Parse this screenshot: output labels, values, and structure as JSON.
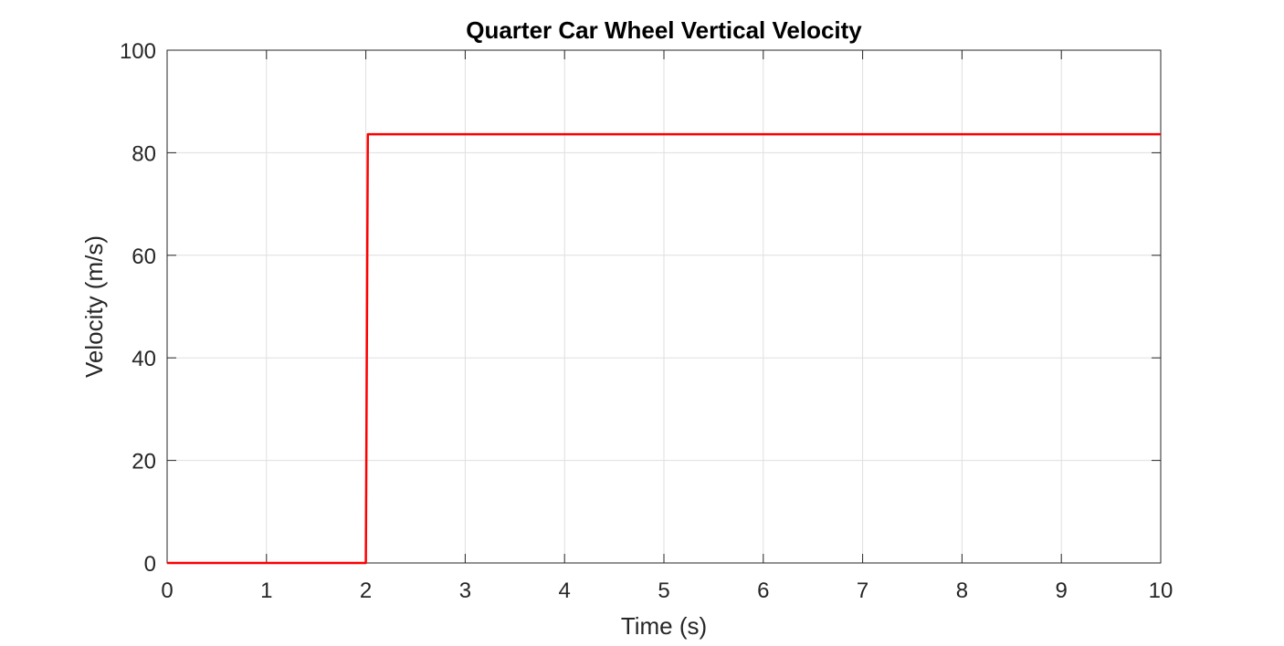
{
  "chart_data": {
    "type": "line",
    "title": "Quarter Car Wheel Vertical Velocity",
    "xlabel": "Time (s)",
    "ylabel": "Velocity (m/s)",
    "xlim": [
      0,
      10
    ],
    "ylim": [
      0,
      100
    ],
    "xticks": [
      0,
      1,
      2,
      3,
      4,
      5,
      6,
      7,
      8,
      9,
      10
    ],
    "yticks": [
      0,
      20,
      40,
      60,
      80,
      100
    ],
    "grid": true,
    "legend": "none",
    "series": [
      {
        "color": "#ff0000",
        "x": [
          0,
          2.0,
          2.02,
          10
        ],
        "y": [
          0,
          0,
          83.6,
          83.6
        ]
      }
    ]
  }
}
